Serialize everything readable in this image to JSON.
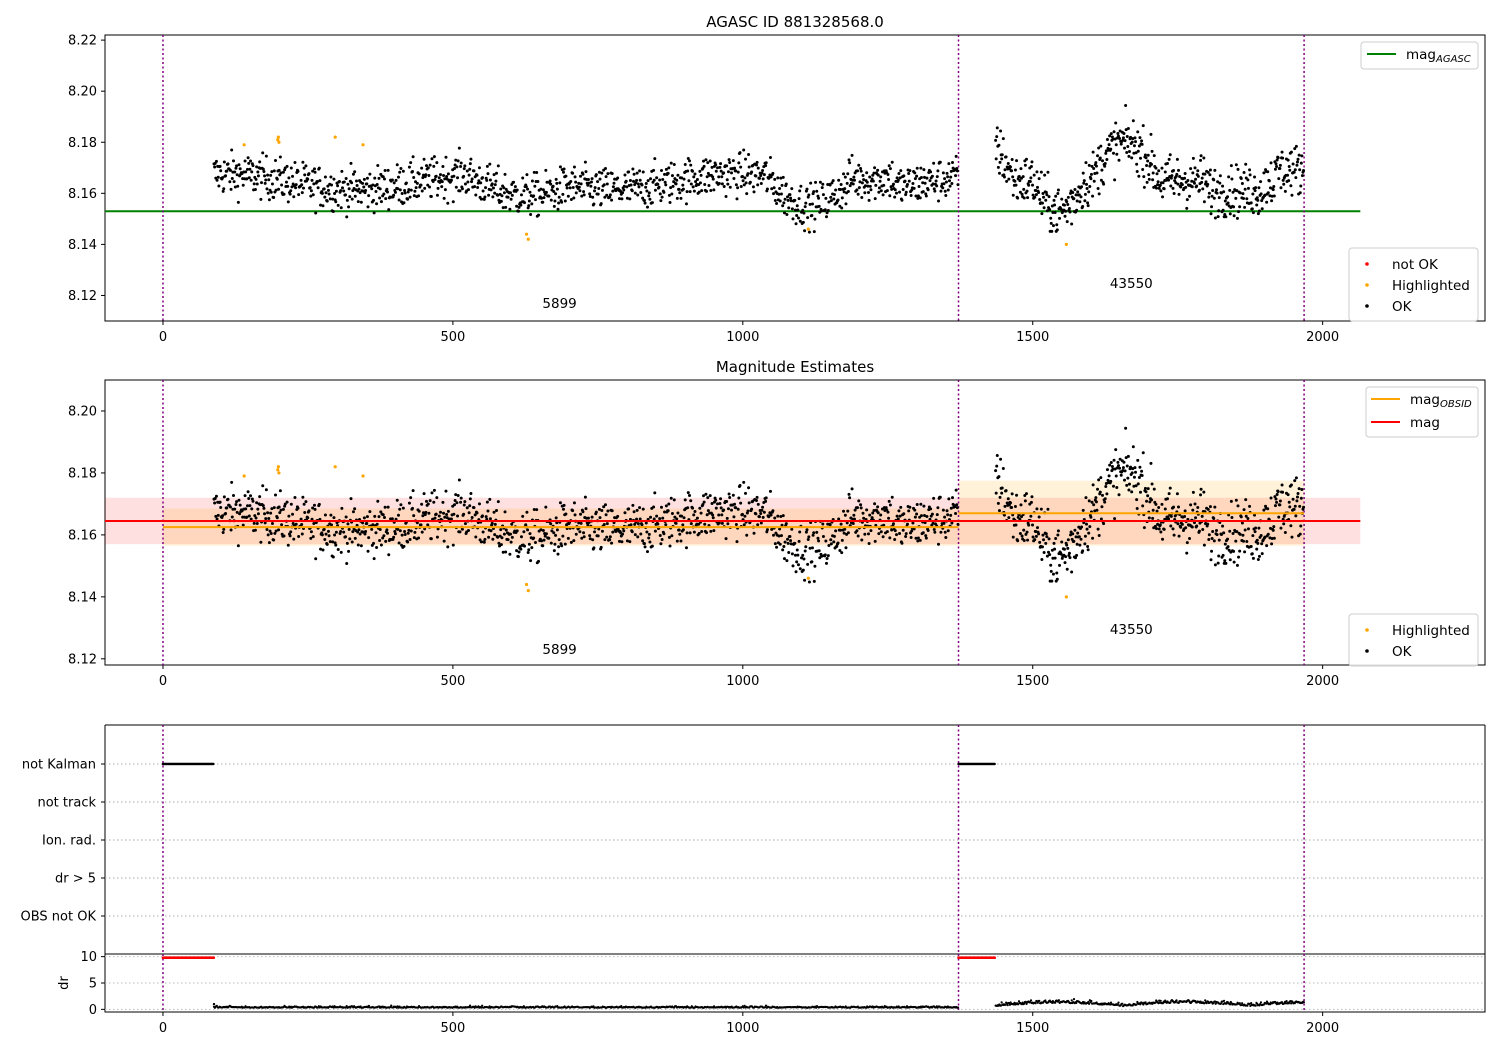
{
  "chart_data": [
    {
      "type": "scatter",
      "title": "AGASC ID 881328568.0",
      "xlim": [
        -100,
        2280
      ],
      "ylim": [
        8.11,
        8.222
      ],
      "xticks": [
        0,
        500,
        1000,
        1500,
        2000
      ],
      "yticks": [
        "8.12",
        "8.14",
        "8.16",
        "8.18",
        "8.20",
        "8.22"
      ],
      "lines": [
        {
          "name": "mag",
          "sub": "AGASC",
          "y": 8.153,
          "x_range": [
            -100,
            2065
          ],
          "color": "#008000"
        }
      ],
      "observation_boundaries": [
        0,
        1372,
        1968
      ],
      "observation_labels": [
        {
          "text": "5899",
          "x": 684,
          "y": 8.115
        },
        {
          "text": "43550",
          "x": 1670,
          "y": 8.123
        }
      ],
      "highlighted_points": [
        [
          140,
          8.179
        ],
        [
          198,
          8.181
        ],
        [
          199,
          8.182
        ],
        [
          200,
          8.18
        ],
        [
          297,
          8.182
        ],
        [
          345,
          8.179
        ],
        [
          627,
          8.144
        ],
        [
          630,
          8.142
        ],
        [
          1113,
          8.146
        ],
        [
          1558,
          8.14
        ]
      ],
      "legend": [
        {
          "label": "not OK",
          "color": "#ff0000"
        },
        {
          "label": "Highlighted",
          "color": "#ffa500"
        },
        {
          "label": "OK",
          "color": "#000000"
        }
      ]
    },
    {
      "type": "scatter",
      "title": "Magnitude Estimates",
      "xlim": [
        -100,
        2280
      ],
      "ylim": [
        8.118,
        8.21
      ],
      "xticks": [
        0,
        500,
        1000,
        1500,
        2000
      ],
      "yticks": [
        "8.12",
        "8.14",
        "8.16",
        "8.18",
        "8.20"
      ],
      "lines": [
        {
          "name": "mag",
          "sub": "OBSID",
          "color": "#ffa500",
          "segments": [
            {
              "x": [
                0,
                1372
              ],
              "y": 8.1625,
              "band": [
                8.1565,
                8.1685
              ]
            },
            {
              "x": [
                1372,
                1968
              ],
              "y": 8.167,
              "band": [
                8.1565,
                8.1775
              ]
            }
          ]
        },
        {
          "name": "mag",
          "sub": "",
          "color": "#ff0000",
          "y": 8.1645,
          "band": [
            8.157,
            8.172
          ],
          "x_range": [
            0,
            2065
          ]
        }
      ],
      "observation_boundaries": [
        0,
        1372,
        1968
      ],
      "observation_labels": [
        {
          "text": "5899",
          "x": 684,
          "y": 8.1215
        },
        {
          "text": "43550",
          "x": 1670,
          "y": 8.128
        }
      ],
      "legend": [
        {
          "label": "Highlighted",
          "color": "#ffa500"
        },
        {
          "label": "OK",
          "color": "#000000"
        }
      ]
    },
    {
      "type": "scatter",
      "title": "",
      "xlim": [
        -100,
        2280
      ],
      "categories": [
        "not Kalman",
        "not track",
        "Ion. rad.",
        "dr > 5",
        "OBS not OK"
      ],
      "flag_ranges": {
        "not Kalman": [
          [
            0,
            88
          ],
          [
            1372,
            1435
          ]
        ]
      },
      "observation_boundaries": [
        0,
        1372,
        1968
      ]
    },
    {
      "type": "scatter",
      "ylabel": "dr",
      "xlim": [
        -100,
        2280
      ],
      "ylim": [
        -0.5,
        10.5
      ],
      "yticks": [
        "0",
        "5",
        "10"
      ],
      "xticks": [
        0,
        500,
        1000,
        1500,
        2000
      ],
      "dr_flag_ranges": [
        [
          0,
          88
        ],
        [
          1372,
          1435
        ]
      ],
      "dr_flag_value": 9.8,
      "observation_boundaries": [
        0,
        1372,
        1968
      ]
    }
  ]
}
